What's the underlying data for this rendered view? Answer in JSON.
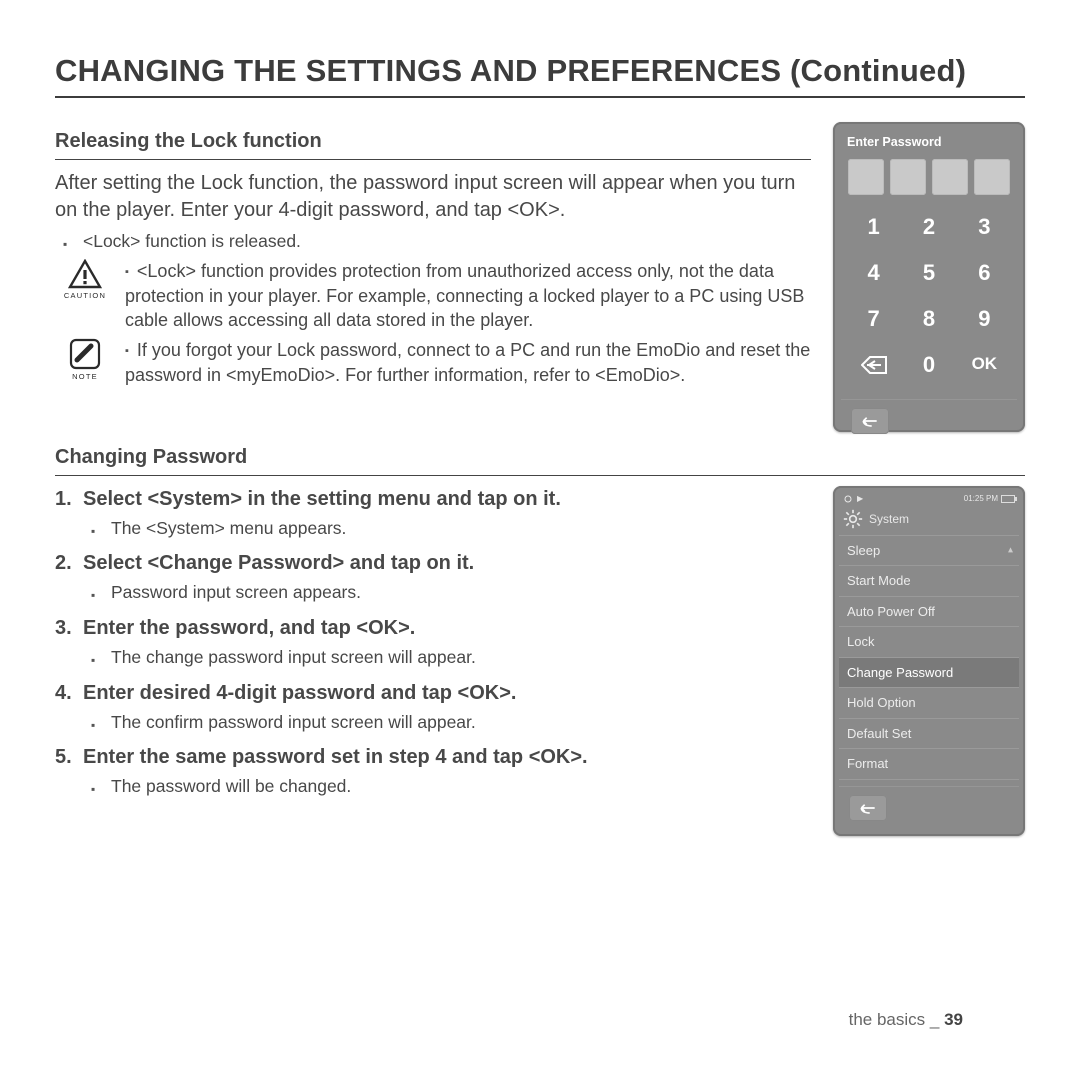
{
  "title": "CHANGING THE SETTINGS AND PREFERENCES (Continued)",
  "s1": {
    "heading": "Releasing the Lock function",
    "para": "After setting the Lock function, the password input screen will appear when you turn on the player. Enter your 4-digit password, and tap <OK>.",
    "b1": "<Lock> function is released.",
    "caution_label": "CAUTION",
    "caution": "<Lock> function provides protection from unauthorized access only, not the data protection in your player. For example, connecting a locked player to a PC using USB cable allows accessing all data stored in the player.",
    "note_label": "NOTE",
    "note": "If you forgot your Lock password, connect to a PC and run the EmoDio and reset the password in <myEmoDio>. For further information, refer to <EmoDio>."
  },
  "s2": {
    "heading": "Changing Password",
    "step1a": "Select ",
    "step1b": "<System>",
    "step1c": " in the setting menu and tap on it.",
    "sub1": "The <System> menu appears.",
    "step2a": "Select ",
    "step2b": "<Change Password>",
    "step2c": " and tap on it.",
    "sub2": "Password input screen appears.",
    "step3a": "Enter the password, and tap ",
    "step3b": "<OK>",
    "step3c": ".",
    "sub3": "The change password input screen will appear.",
    "step4a": "Enter desired 4-digit password and tap ",
    "step4b": "<OK>",
    "step4c": ".",
    "sub4": "The confirm password input screen will appear.",
    "step5a": "Enter the same password set in step 4 and tap ",
    "step5b": "<OK>",
    "step5c": ".",
    "sub5": "The password will be changed."
  },
  "dev1": {
    "title": "Enter Password",
    "keys": [
      "1",
      "2",
      "3",
      "4",
      "5",
      "6",
      "7",
      "8",
      "9",
      "←",
      "0",
      "OK"
    ],
    "bg": "#8a8a8a",
    "slot_bg": "#c9c9c9",
    "text": "#ffffff"
  },
  "dev2": {
    "time": "01:25 PM",
    "title": "System",
    "items": [
      "Sleep",
      "Start Mode",
      "Auto Power Off",
      "Lock",
      "Change Password",
      "Hold Option",
      "Default Set",
      "Format"
    ],
    "selected_index": 4,
    "bg": "#8a8a8a",
    "sel_bg": "#7a7a7a"
  },
  "footer": {
    "section": "the basics _ ",
    "page": "39"
  }
}
